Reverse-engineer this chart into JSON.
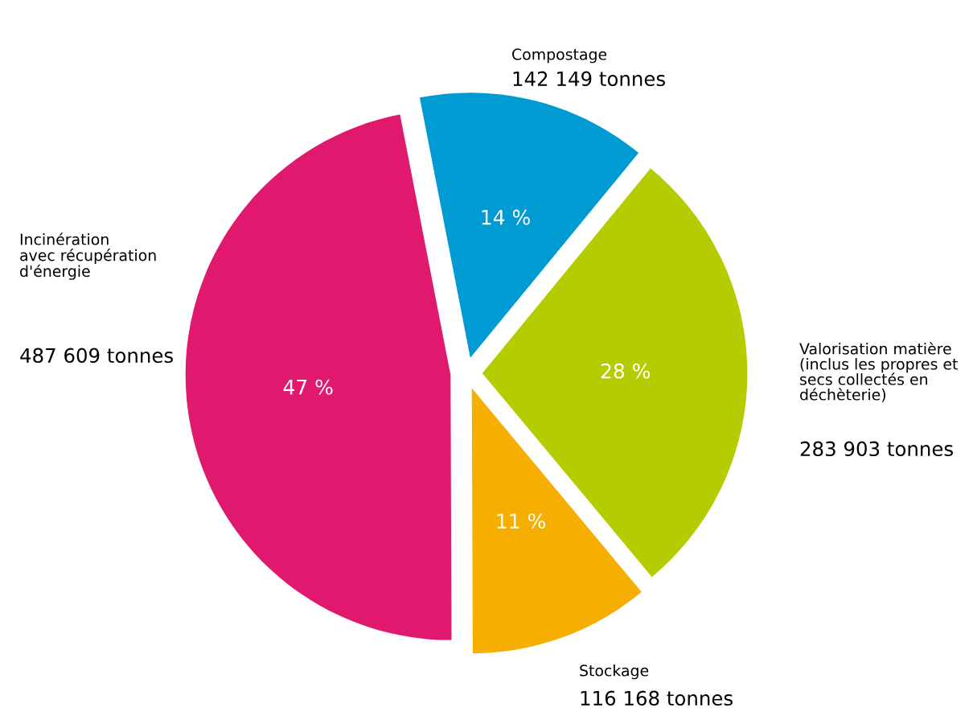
{
  "chart_data": {
    "type": "pie",
    "categories": [
      "Compostage",
      "Valorisation matière\n(inclus les propres et\nsecs collectés en\ndéchèterie)",
      "Stockage",
      "Incinération\navec récupération\nd'énergie"
    ],
    "values": [
      14,
      28,
      11,
      47
    ],
    "value_labels": [
      "14 %",
      "28 %",
      "11 %",
      "47 %"
    ],
    "colors": [
      "#009bd2",
      "#b4cc00",
      "#f6ae00",
      "#e0196e"
    ],
    "annotations": [
      "142 149 tonnes",
      "283 903 tonnes",
      "116 168 tonnes",
      "487 609 tonnes"
    ],
    "legend": false
  }
}
